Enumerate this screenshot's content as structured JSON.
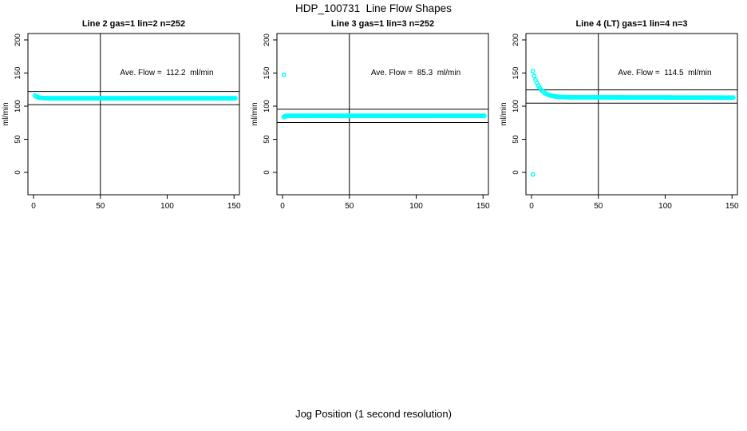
{
  "page": {
    "main_title": "HDP_100731  Line Flow Shapes",
    "x_axis_label": "Jog Position (1 second resolution)"
  },
  "chart_data": {
    "type": "scatter",
    "title": "HDP_100731  Line Flow Shapes",
    "xlabel": "Jog Position (1 second resolution)",
    "ylabel": "ml/min",
    "point_color": "#00FFFF",
    "axis_color": "#000000",
    "x_ticks": [
      0,
      50,
      100,
      150
    ],
    "y_ticks": [
      0,
      50,
      100,
      150,
      200
    ],
    "xlim": [
      -4,
      158
    ],
    "ylim": [
      -33,
      210
    ],
    "vline_x": 50,
    "grid": false,
    "legend": "none",
    "panels": [
      {
        "title": "Line 2 gas=1 lin=2 n=252",
        "line": "Line 2",
        "gas": 1,
        "lin": 2,
        "n": 252,
        "ave_flow": 112.2,
        "ave_flow_label": "Ave. Flow =  112.2  ml/min",
        "hlines": [
          122.2,
          102.2
        ],
        "series": {
          "decay": [
            [
              1,
              116.0
            ],
            [
              2,
              114.7
            ],
            [
              3,
              113.7
            ],
            [
              4,
              113.1
            ],
            [
              5,
              112.7
            ],
            [
              6,
              112.5
            ],
            [
              7,
              112.3
            ],
            [
              8,
              112.1
            ],
            [
              9,
              112.1
            ],
            [
              10,
              112.0
            ],
            [
              11,
              112.0
            ],
            [
              12,
              111.9
            ]
          ],
          "band": {
            "x1": 12,
            "x2": 151,
            "y1": 111.9,
            "y2": 111.9
          },
          "outliers": []
        }
      },
      {
        "title": "Line 3 gas=1 lin=3 n=252",
        "line": "Line 3",
        "gas": 1,
        "lin": 3,
        "n": 252,
        "ave_flow": 85.3,
        "ave_flow_label": "Ave. Flow =  85.3  ml/min",
        "hlines": [
          95.3,
          75.3
        ],
        "series": {
          "decay": [
            [
              1,
              83.8
            ],
            [
              1.5,
              84.3
            ],
            [
              2,
              84.8
            ],
            [
              3,
              85.1
            ]
          ],
          "band": {
            "x1": 3,
            "x2": 151,
            "y1": 85.4,
            "y2": 85.4
          },
          "outliers": [
            [
              1,
              147.5
            ]
          ]
        }
      },
      {
        "title": "Line 4 (LT) gas=1 lin=4 n=3",
        "line": "Line 4 (LT)",
        "gas": 1,
        "lin": 4,
        "n": 3,
        "ave_flow": 114.5,
        "ave_flow_label": "Ave. Flow =  114.5  ml/min",
        "hlines": [
          124.5,
          104.5
        ],
        "series": {
          "decay": [
            [
              1,
              152.8
            ],
            [
              2,
              145.6
            ],
            [
              3,
              139.8
            ],
            [
              4,
              135.0
            ],
            [
              5,
              131.1
            ],
            [
              6,
              127.8
            ],
            [
              7,
              125.2
            ],
            [
              8,
              123.0
            ],
            [
              9,
              121.3
            ],
            [
              10,
              119.8
            ],
            [
              11,
              118.7
            ],
            [
              12,
              117.7
            ],
            [
              13,
              116.9
            ],
            [
              14,
              116.2
            ],
            [
              15,
              115.7
            ],
            [
              16,
              115.3
            ],
            [
              17,
              114.9
            ],
            [
              18,
              114.6
            ],
            [
              19,
              114.4
            ],
            [
              20,
              114.2
            ],
            [
              21,
              114.0
            ],
            [
              22,
              113.9
            ],
            [
              23,
              113.8
            ],
            [
              24,
              113.7
            ],
            [
              25,
              113.6
            ],
            [
              26,
              113.6
            ],
            [
              27,
              113.5
            ],
            [
              28,
              113.5
            ],
            [
              29,
              113.4
            ],
            [
              30,
              113.4
            ]
          ],
          "band": {
            "x1": 30,
            "x2": 151,
            "y1": 113.4,
            "y2": 112.9
          },
          "outliers": [
            [
              1,
              -3
            ]
          ]
        }
      }
    ]
  }
}
